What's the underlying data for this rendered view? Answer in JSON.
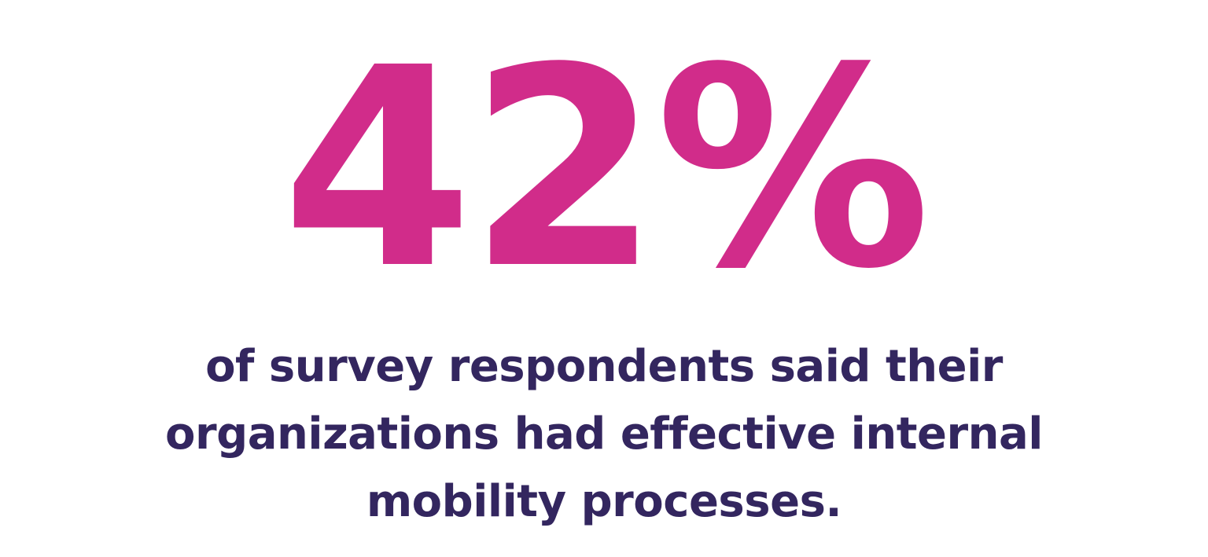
{
  "stat": {
    "value": "42%"
  },
  "caption": {
    "lines": [
      "of survey respondents said their",
      "organizations had effective internal",
      "mobility processes."
    ]
  },
  "colors": {
    "stat": "#d12c8a",
    "caption": "#33265f",
    "background": "#ffffff"
  }
}
